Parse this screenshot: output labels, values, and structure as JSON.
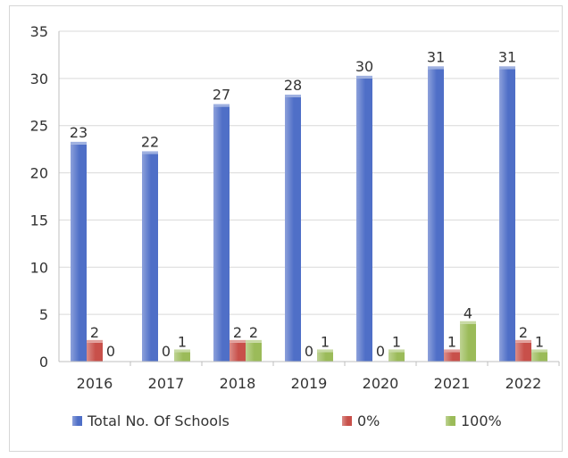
{
  "chart_data": {
    "type": "bar",
    "categories": [
      "2016",
      "2017",
      "2018",
      "2019",
      "2020",
      "2021",
      "2022"
    ],
    "series": [
      {
        "name": "Total No. Of Schools",
        "values": [
          23,
          22,
          27,
          28,
          30,
          31,
          31
        ],
        "color": "#4f6fc7"
      },
      {
        "name": "0%",
        "values": [
          2,
          0,
          2,
          0,
          0,
          1,
          2
        ],
        "color": "#c8504a"
      },
      {
        "name": "100%",
        "values": [
          0,
          1,
          2,
          1,
          1,
          4,
          1
        ],
        "color": "#9bbb59"
      }
    ],
    "ylim": [
      0,
      35
    ],
    "yticks": [
      0,
      5,
      10,
      15,
      20,
      25,
      30,
      35
    ],
    "grid": true,
    "legend_position": "bottom",
    "data_labels": true,
    "title": "",
    "xlabel": "",
    "ylabel": ""
  }
}
